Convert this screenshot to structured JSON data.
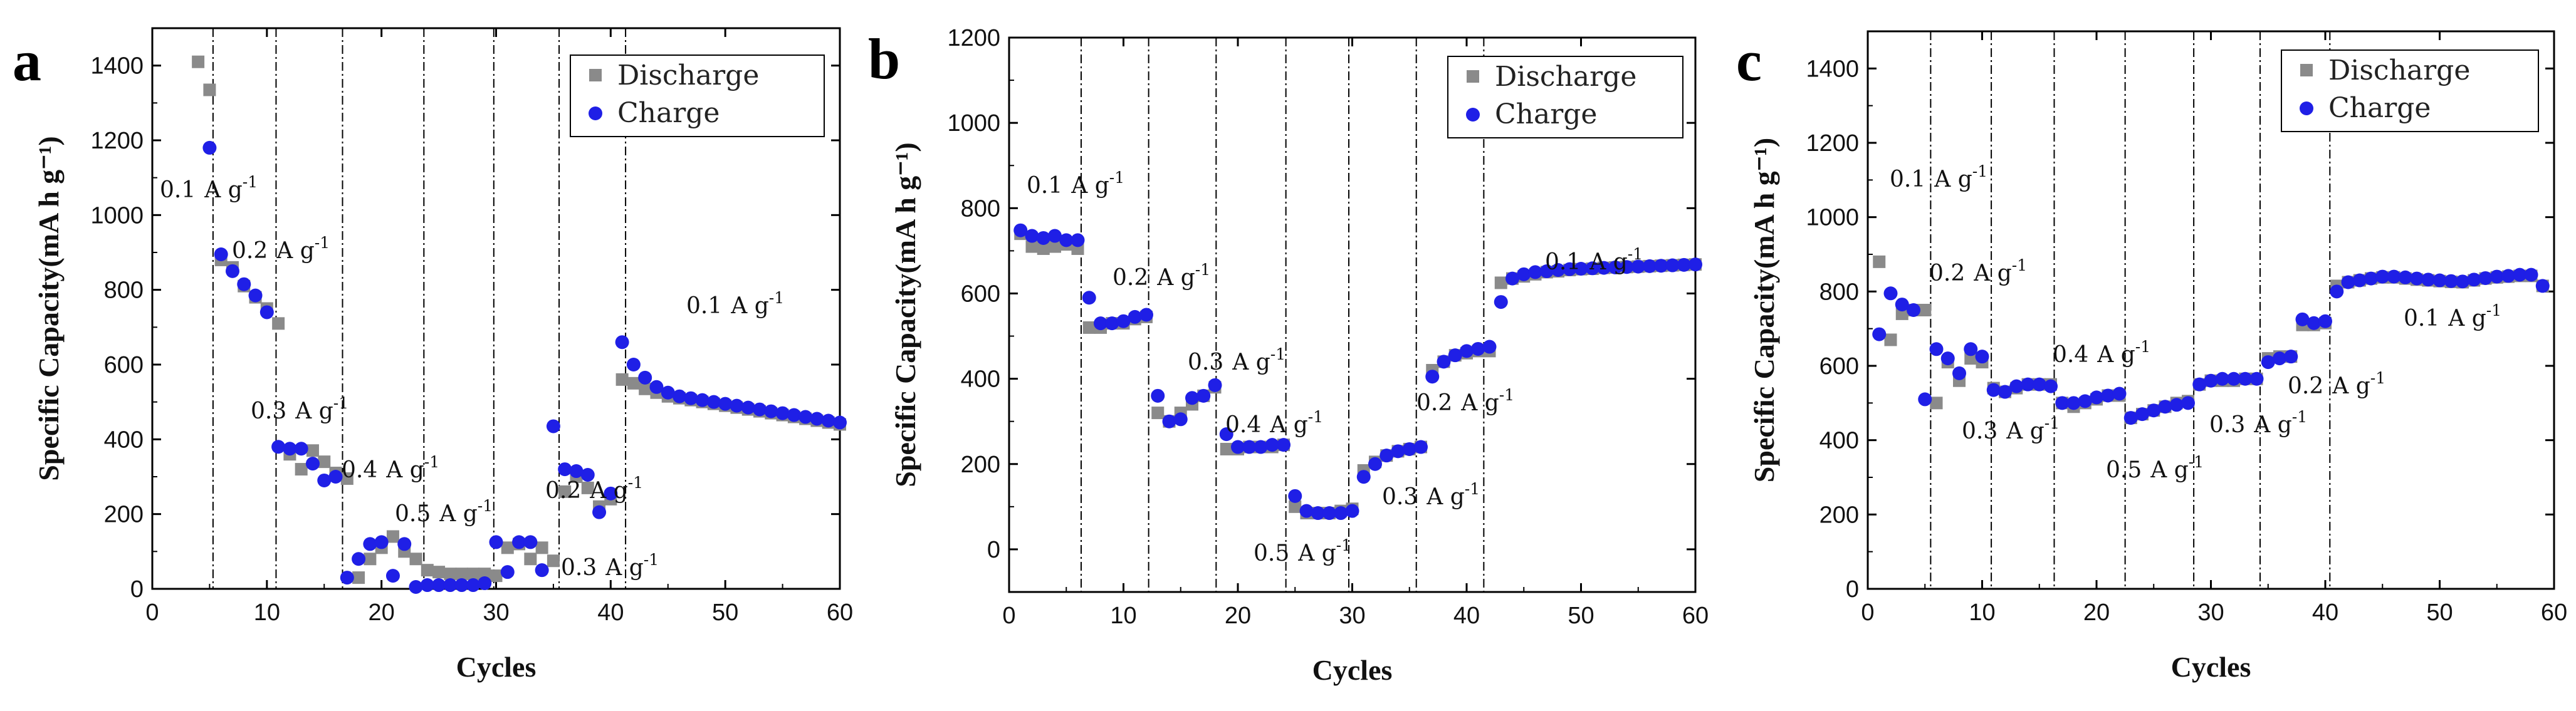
{
  "colors": {
    "discharge": "#8a8a8a",
    "charge": "#1f1fe6"
  },
  "panels": [
    {
      "letter": "a",
      "xlabel": "Cycles",
      "ylabel": "Specific Capacity(mA h g⁻¹)",
      "xlim": [
        0,
        60
      ],
      "ylim": [
        0,
        1500
      ],
      "xticks": [
        0,
        10,
        20,
        30,
        40,
        50,
        60
      ],
      "yticks": [
        0,
        200,
        400,
        600,
        800,
        1000,
        1200,
        1400
      ],
      "legend": {
        "discharge": "Discharge",
        "charge": "Charge"
      },
      "annotations": [
        {
          "value": "0.1",
          "unit": "A g",
          "exp": "-1"
        },
        {
          "value": "0.2",
          "unit": "A g",
          "exp": "-1"
        },
        {
          "value": "0.3",
          "unit": "A g",
          "exp": "-1"
        },
        {
          "value": "0.4",
          "unit": "A g",
          "exp": "-1"
        },
        {
          "value": "0.5",
          "unit": "A g",
          "exp": "-1"
        },
        {
          "value": "0.3",
          "unit": "A g",
          "exp": "-1"
        },
        {
          "value": "0.2",
          "unit": "A g",
          "exp": "-1"
        },
        {
          "value": "0.1",
          "unit": "A g",
          "exp": "-1"
        }
      ]
    },
    {
      "letter": "b",
      "xlabel": "Cycles",
      "ylabel": "Specific Capacity(mA h g⁻¹)",
      "xlim": [
        0,
        60
      ],
      "ylim": [
        -100,
        1200
      ],
      "xticks": [
        0,
        10,
        20,
        30,
        40,
        50,
        60
      ],
      "yticks": [
        0,
        200,
        400,
        600,
        800,
        1000,
        1200
      ],
      "legend": {
        "discharge": "Discharge",
        "charge": "Charge"
      },
      "annotations": [
        {
          "value": "0.1",
          "unit": "A g",
          "exp": "-1"
        },
        {
          "value": "0.2",
          "unit": "A g",
          "exp": "-1"
        },
        {
          "value": "0.3",
          "unit": "A g",
          "exp": "-1"
        },
        {
          "value": "0.4",
          "unit": "A g",
          "exp": "-1"
        },
        {
          "value": "0.5",
          "unit": "A g",
          "exp": "-1"
        },
        {
          "value": "0.3",
          "unit": "A g",
          "exp": "-1"
        },
        {
          "value": "0.2",
          "unit": "A g",
          "exp": "-1"
        },
        {
          "value": "0.1",
          "unit": "A g",
          "exp": "-1"
        }
      ]
    },
    {
      "letter": "c",
      "xlabel": "Cycles",
      "ylabel": "Specific Capacity(mA h g⁻¹)",
      "xlim": [
        0,
        60
      ],
      "ylim": [
        0,
        1500
      ],
      "xticks": [
        0,
        10,
        20,
        30,
        40,
        50,
        60
      ],
      "yticks": [
        0,
        200,
        400,
        600,
        800,
        1000,
        1200,
        1400
      ],
      "legend": {
        "discharge": "Discharge",
        "charge": "Charge"
      },
      "annotations": [
        {
          "value": "0.1",
          "unit": "A g",
          "exp": "-1"
        },
        {
          "value": "0.2",
          "unit": "A g",
          "exp": "-1"
        },
        {
          "value": "0.3",
          "unit": "A g",
          "exp": "-1"
        },
        {
          "value": "0.4",
          "unit": "A g",
          "exp": "-1"
        },
        {
          "value": "0.5",
          "unit": "A g",
          "exp": "-1"
        },
        {
          "value": "0.3",
          "unit": "A g",
          "exp": "-1"
        },
        {
          "value": "0.2",
          "unit": "A g",
          "exp": "-1"
        },
        {
          "value": "0.1",
          "unit": "A g",
          "exp": "-1"
        }
      ]
    }
  ],
  "chart_data": [
    {
      "type": "scatter",
      "title": "a",
      "xlabel": "Cycles",
      "ylabel": "Specific Capacity(mA h g-1)",
      "xlim": [
        0,
        60
      ],
      "ylim": [
        0,
        1500
      ],
      "rate_boundaries": [
        5.3,
        10.8,
        16.6,
        23.7,
        29.8,
        35.5,
        41.3
      ],
      "rate_labels": [
        "0.1 A g-1",
        "0.2 A g-1",
        "0.3 A g-1",
        "0.4 A g-1",
        "0.5 A g-1",
        "0.3 A g-1",
        "0.2 A g-1",
        "0.1 A g-1"
      ],
      "series": [
        {
          "name": "Discharge",
          "x": [
            4,
            5,
            6,
            7,
            8,
            9,
            10,
            11,
            12,
            13,
            14,
            15,
            16,
            17,
            18,
            19,
            20,
            21,
            22,
            23,
            24,
            25,
            26,
            27,
            28,
            29,
            30,
            31,
            32,
            33,
            34,
            35,
            36,
            37,
            38,
            39,
            40,
            41,
            42,
            43,
            44,
            45,
            46,
            47,
            48,
            49,
            50,
            51,
            52,
            53,
            54,
            55,
            56,
            57,
            58,
            59,
            60
          ],
          "values": [
            1410,
            1335,
            880,
            860,
            810,
            780,
            750,
            710,
            360,
            320,
            370,
            340,
            310,
            295,
            30,
            80,
            110,
            140,
            100,
            80,
            50,
            45,
            40,
            40,
            40,
            40,
            35,
            110,
            120,
            80,
            110,
            75,
            260,
            300,
            270,
            220,
            240,
            560,
            550,
            535,
            525,
            515,
            510,
            505,
            500,
            495,
            490,
            485,
            480,
            475,
            470,
            465,
            460,
            455,
            450,
            445,
            440
          ]
        },
        {
          "name": "Charge",
          "x": [
            5,
            6,
            7,
            8,
            9,
            10,
            11,
            12,
            13,
            14,
            15,
            16,
            17,
            18,
            19,
            20,
            21,
            22,
            23,
            24,
            25,
            26,
            27,
            28,
            29,
            30,
            31,
            32,
            33,
            34,
            35,
            36,
            37,
            38,
            39,
            40,
            41,
            42,
            43,
            44,
            45,
            46,
            47,
            48,
            49,
            50,
            51,
            52,
            53,
            54,
            55,
            56,
            57,
            58,
            59,
            60
          ],
          "values": [
            1180,
            895,
            850,
            815,
            785,
            740,
            380,
            375,
            375,
            335,
            290,
            300,
            30,
            80,
            120,
            125,
            35,
            120,
            5,
            10,
            10,
            10,
            10,
            10,
            15,
            125,
            45,
            125,
            125,
            50,
            435,
            320,
            315,
            305,
            205,
            255,
            660,
            600,
            565,
            540,
            525,
            515,
            510,
            505,
            500,
            495,
            490,
            485,
            480,
            475,
            470,
            465,
            460,
            455,
            450,
            445
          ]
        }
      ]
    },
    {
      "type": "scatter",
      "title": "b",
      "xlabel": "Cycles",
      "ylabel": "Specific Capacity(mA h g-1)",
      "xlim": [
        0,
        60
      ],
      "ylim": [
        -100,
        1200
      ],
      "rate_boundaries": [
        6.3,
        12.2,
        18.1,
        24.2,
        29.7,
        35.6,
        41.5
      ],
      "rate_labels": [
        "0.1 A g-1",
        "0.2 A g-1",
        "0.3 A g-1",
        "0.4 A g-1",
        "0.5 A g-1",
        "0.3 A g-1",
        "0.2 A g-1",
        "0.1 A g-1"
      ],
      "series": [
        {
          "name": "Discharge",
          "x": [
            1,
            2,
            3,
            4,
            5,
            6,
            7,
            8,
            9,
            10,
            11,
            12,
            13,
            14,
            15,
            16,
            17,
            18,
            19,
            20,
            21,
            22,
            23,
            24,
            25,
            26,
            27,
            28,
            29,
            30,
            31,
            32,
            33,
            34,
            35,
            36,
            37,
            38,
            39,
            40,
            41,
            42,
            43,
            44,
            45,
            46,
            47,
            48,
            49,
            50,
            51,
            52,
            53,
            54,
            55,
            56,
            57,
            58,
            59,
            60
          ],
          "values": [
            740,
            710,
            705,
            710,
            715,
            705,
            520,
            520,
            530,
            530,
            540,
            545,
            320,
            300,
            320,
            340,
            360,
            380,
            235,
            235,
            240,
            240,
            240,
            245,
            100,
            85,
            85,
            85,
            90,
            95,
            185,
            205,
            220,
            230,
            235,
            240,
            420,
            440,
            455,
            460,
            465,
            465,
            625,
            635,
            640,
            645,
            650,
            652,
            655,
            657,
            658,
            660,
            661,
            662,
            663,
            664,
            665,
            666,
            667,
            668
          ]
        },
        {
          "name": "Charge",
          "x": [
            1,
            2,
            3,
            4,
            5,
            6,
            7,
            8,
            9,
            10,
            11,
            12,
            13,
            14,
            15,
            16,
            17,
            18,
            19,
            20,
            21,
            22,
            23,
            24,
            25,
            26,
            27,
            28,
            29,
            30,
            31,
            32,
            33,
            34,
            35,
            36,
            37,
            38,
            39,
            40,
            41,
            42,
            43,
            44,
            45,
            46,
            47,
            48,
            49,
            50,
            51,
            52,
            53,
            54,
            55,
            56,
            57,
            58,
            59,
            60
          ],
          "values": [
            748,
            735,
            730,
            735,
            725,
            725,
            590,
            530,
            530,
            535,
            545,
            550,
            360,
            300,
            305,
            355,
            360,
            385,
            270,
            240,
            240,
            240,
            245,
            245,
            125,
            90,
            85,
            85,
            85,
            90,
            170,
            200,
            220,
            230,
            235,
            240,
            405,
            440,
            455,
            465,
            470,
            475,
            580,
            635,
            645,
            650,
            652,
            655,
            657,
            658,
            659,
            660,
            661,
            662,
            663,
            664,
            665,
            666,
            667,
            668
          ]
        }
      ]
    },
    {
      "type": "scatter",
      "title": "c",
      "xlabel": "Cycles",
      "ylabel": "Specific Capacity(mA h g-1)",
      "xlim": [
        0,
        60
      ],
      "ylim": [
        0,
        1500
      ],
      "rate_boundaries": [
        5.5,
        10.8,
        16.3,
        22.5,
        28.5,
        34.3,
        40.4
      ],
      "rate_labels": [
        "0.1 A g-1",
        "0.2 A g-1",
        "0.3 A g-1",
        "0.4 A g-1",
        "0.5 A g-1",
        "0.3 A g-1",
        "0.2 A g-1",
        "0.1 A g-1"
      ],
      "series": [
        {
          "name": "Discharge",
          "x": [
            1,
            2,
            3,
            4,
            5,
            6,
            7,
            8,
            9,
            10,
            11,
            12,
            13,
            14,
            15,
            16,
            17,
            18,
            19,
            20,
            21,
            22,
            23,
            24,
            25,
            26,
            27,
            28,
            29,
            30,
            31,
            32,
            33,
            34,
            35,
            36,
            37,
            38,
            39,
            40,
            41,
            42,
            43,
            44,
            45,
            46,
            47,
            48,
            49,
            50,
            51,
            52,
            53,
            54,
            55,
            56,
            57,
            58,
            59
          ],
          "values": [
            880,
            670,
            740,
            750,
            750,
            500,
            610,
            560,
            620,
            610,
            540,
            530,
            540,
            550,
            550,
            550,
            500,
            490,
            500,
            510,
            520,
            520,
            460,
            470,
            480,
            490,
            500,
            505,
            550,
            560,
            560,
            560,
            565,
            565,
            620,
            625,
            625,
            710,
            710,
            715,
            815,
            825,
            830,
            835,
            838,
            838,
            835,
            832,
            830,
            828,
            826,
            825,
            830,
            835,
            838,
            840,
            842,
            842,
            815
          ]
        },
        {
          "name": "Charge",
          "x": [
            1,
            2,
            3,
            4,
            5,
            6,
            7,
            8,
            9,
            10,
            11,
            12,
            13,
            14,
            15,
            16,
            17,
            18,
            19,
            20,
            21,
            22,
            23,
            24,
            25,
            26,
            27,
            28,
            29,
            30,
            31,
            32,
            33,
            34,
            35,
            36,
            37,
            38,
            39,
            40,
            41,
            42,
            43,
            44,
            45,
            46,
            47,
            48,
            49,
            50,
            51,
            52,
            53,
            54,
            55,
            56,
            57,
            58,
            59
          ],
          "values": [
            685,
            795,
            765,
            750,
            510,
            645,
            620,
            580,
            645,
            625,
            535,
            530,
            545,
            550,
            550,
            545,
            500,
            500,
            505,
            515,
            520,
            525,
            460,
            470,
            480,
            490,
            495,
            500,
            550,
            560,
            565,
            565,
            565,
            565,
            610,
            620,
            625,
            725,
            715,
            720,
            800,
            825,
            830,
            835,
            840,
            840,
            838,
            835,
            832,
            830,
            828,
            827,
            832,
            836,
            840,
            842,
            845,
            845,
            815
          ]
        }
      ]
    }
  ]
}
